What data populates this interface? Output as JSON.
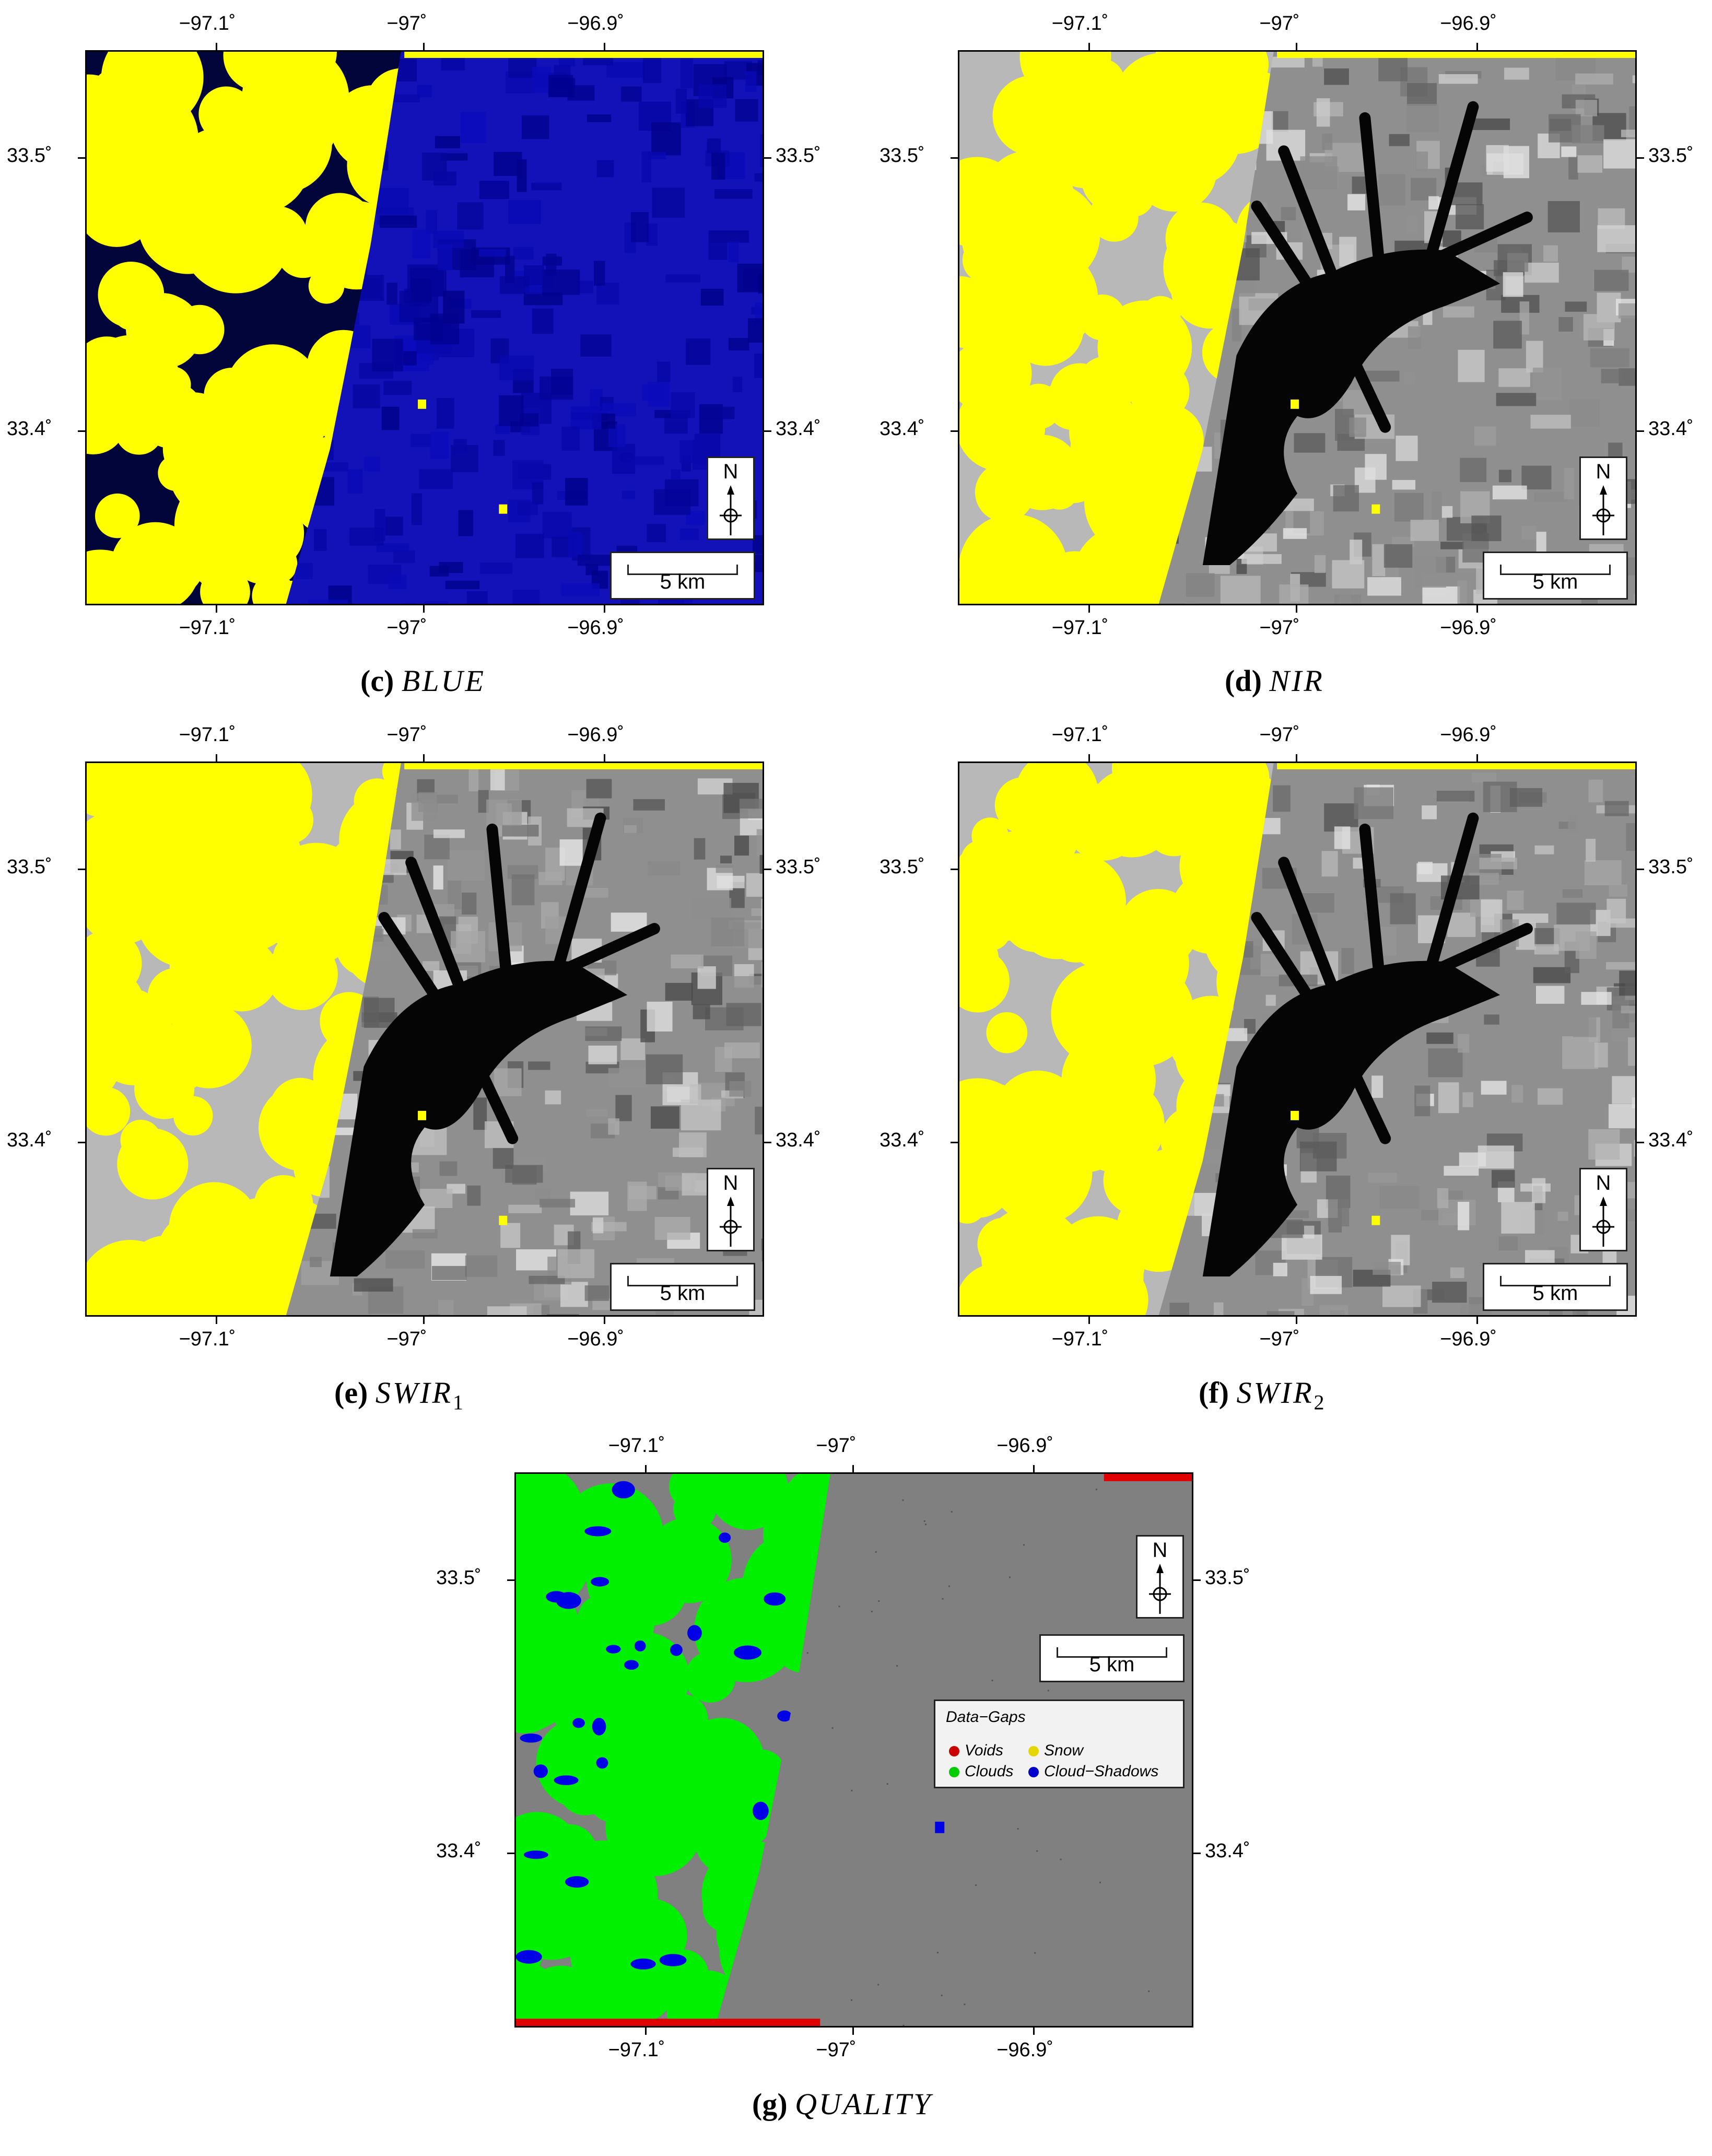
{
  "colors": {
    "cloud_yellow": "#ffff00",
    "blue_band": "#1212b8",
    "dark_navy": "#02053a",
    "water_black": "#050505",
    "land_gray": "#8f8f8f",
    "quality_gray": "#808080",
    "quality_green": "#00f000",
    "quality_blue": "#0000e6",
    "quality_red": "#e00000"
  },
  "axes": {
    "lon_ticks": [
      "−97.1˚",
      "−97˚",
      "−96.9˚"
    ],
    "lat_ticks": [
      "33.5˚",
      "33.4˚"
    ]
  },
  "north_arrow": {
    "label": "N",
    "icon": "north-arrow-icon"
  },
  "scale_bar": {
    "label": "5 km"
  },
  "panels": [
    {
      "id": "c",
      "letter": "(c)",
      "band": "BLUE",
      "sub": ""
    },
    {
      "id": "d",
      "letter": "(d)",
      "band": "NIR",
      "sub": ""
    },
    {
      "id": "e",
      "letter": "(e)",
      "band": "SWIR",
      "sub": "1"
    },
    {
      "id": "f",
      "letter": "(f)",
      "band": "SWIR",
      "sub": "2"
    },
    {
      "id": "g",
      "letter": "(g)",
      "band": "QUALITY",
      "sub": ""
    }
  ],
  "legend": {
    "title": "Data−Gaps",
    "items": [
      {
        "label": "Voids",
        "color": "#cc0000"
      },
      {
        "label": "Snow",
        "color": "#e6d600"
      },
      {
        "label": "Clouds",
        "color": "#00cc00"
      },
      {
        "label": "Cloud−Shadows",
        "color": "#0000cc"
      }
    ]
  }
}
